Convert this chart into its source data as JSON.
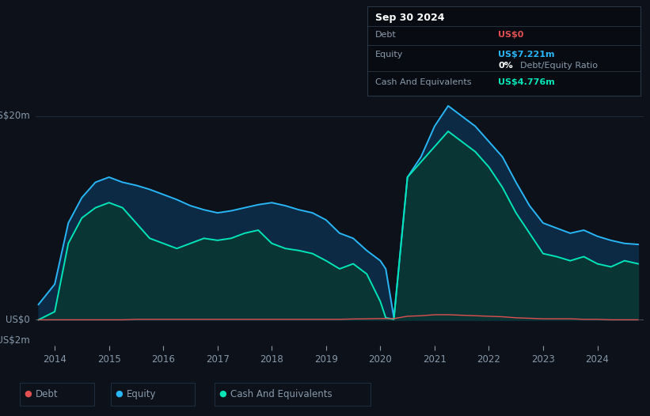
{
  "bg_color": "#0c111a",
  "plot_bg_color": "#0c111a",
  "text_color": "#8899aa",
  "title_text_color": "#ffffff",
  "debt_color": "#e05050",
  "equity_color": "#29b6f6",
  "cash_color": "#00e5b8",
  "equity_fill_color": "#0d2a45",
  "cash_fill_color": "#0a3535",
  "zero_line_color": "#aaaaaa",
  "grid_line_color": "#1e2d3d",
  "tooltip_bg": "#080c12",
  "tooltip_border": "#2a3545",
  "legend_border": "#1e2d3d",
  "ylim": [
    -2.5,
    22
  ],
  "xtick_labels": [
    "2014",
    "2015",
    "2016",
    "2017",
    "2018",
    "2019",
    "2020",
    "2021",
    "2022",
    "2023",
    "2024"
  ],
  "x_positions": [
    2014,
    2015,
    2016,
    2017,
    2018,
    2019,
    2020,
    2021,
    2022,
    2023,
    2024
  ],
  "years": [
    2013.7,
    2014.0,
    2014.25,
    2014.5,
    2014.75,
    2015.0,
    2015.25,
    2015.5,
    2015.75,
    2016.0,
    2016.25,
    2016.5,
    2016.75,
    2017.0,
    2017.25,
    2017.5,
    2017.75,
    2018.0,
    2018.25,
    2018.5,
    2018.75,
    2019.0,
    2019.25,
    2019.5,
    2019.75,
    2020.0,
    2020.1,
    2020.25,
    2020.5,
    2020.75,
    2021.0,
    2021.25,
    2021.5,
    2021.75,
    2022.0,
    2022.25,
    2022.5,
    2022.75,
    2023.0,
    2023.25,
    2023.5,
    2023.75,
    2024.0,
    2024.25,
    2024.5,
    2024.75
  ],
  "equity": [
    1.5,
    3.5,
    9.5,
    12.0,
    13.5,
    14.0,
    13.5,
    13.2,
    12.8,
    12.3,
    11.8,
    11.2,
    10.8,
    10.5,
    10.7,
    11.0,
    11.3,
    11.5,
    11.2,
    10.8,
    10.5,
    9.8,
    8.5,
    8.0,
    6.8,
    5.8,
    5.0,
    0.2,
    14.0,
    16.0,
    19.0,
    21.0,
    20.0,
    19.0,
    17.5,
    16.0,
    13.5,
    11.2,
    9.5,
    9.0,
    8.5,
    8.8,
    8.2,
    7.8,
    7.5,
    7.4
  ],
  "cash": [
    0.0,
    0.8,
    7.5,
    10.0,
    11.0,
    11.5,
    11.0,
    9.5,
    8.0,
    7.5,
    7.0,
    7.5,
    8.0,
    7.8,
    8.0,
    8.5,
    8.8,
    7.5,
    7.0,
    6.8,
    6.5,
    5.8,
    5.0,
    5.5,
    4.5,
    1.8,
    0.2,
    0.05,
    14.0,
    15.5,
    17.0,
    18.5,
    17.5,
    16.5,
    15.0,
    13.0,
    10.5,
    8.5,
    6.5,
    6.2,
    5.8,
    6.2,
    5.5,
    5.2,
    5.8,
    5.5
  ],
  "debt": [
    0.0,
    0.0,
    0.0,
    0.0,
    0.0,
    0.0,
    0.0,
    0.05,
    0.05,
    0.05,
    0.05,
    0.05,
    0.05,
    0.05,
    0.05,
    0.05,
    0.05,
    0.05,
    0.05,
    0.05,
    0.05,
    0.05,
    0.05,
    0.08,
    0.1,
    0.12,
    0.12,
    0.12,
    0.35,
    0.4,
    0.5,
    0.5,
    0.45,
    0.4,
    0.35,
    0.3,
    0.2,
    0.15,
    0.1,
    0.1,
    0.1,
    0.05,
    0.05,
    0.0,
    0.0,
    0.0
  ]
}
